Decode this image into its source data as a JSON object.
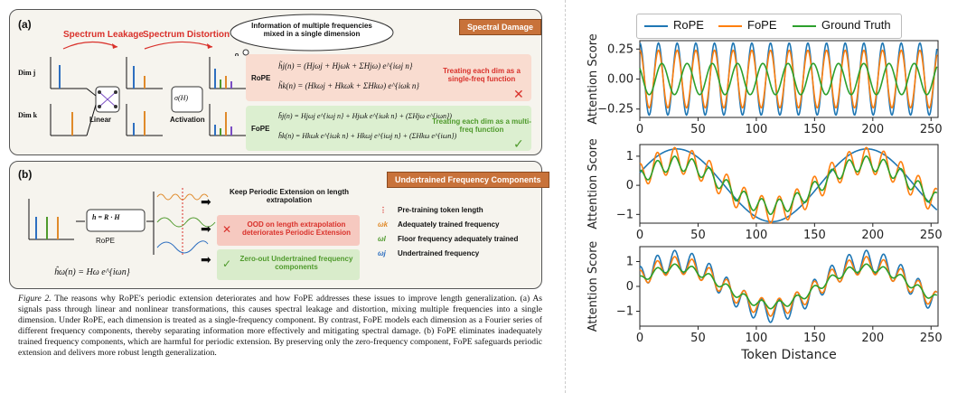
{
  "figure": {
    "panel_a": {
      "label": "(a)",
      "spectrum_leakage": "Spectrum Leakage",
      "spectrum_distortion": "Spectrum Distortion",
      "cloud_text": "Information of multiple frequencies mixed in a single dimension",
      "tag": "Spectral Damage",
      "dim_j": "Dim j",
      "dim_k": "Dim k",
      "axis_h": "H",
      "axis_w": "ω",
      "omega_j": "ωj",
      "omega_k": "ωk",
      "linear_label": "Linear",
      "activation_label": "Activation",
      "sigma": "σ(H)",
      "rope_label": "RoPE",
      "fope_label": "FoPE",
      "rope_eq1": "h̃j(n) = (Hjωj + Hjωk + ΣHjω) e^{iωj n}",
      "rope_eq2": "h̃k(n) = (Hkωj + Hkωk + ΣHkω) e^{iωk n}",
      "fope_eq1": "h̃j(n) = Hjωj e^{iωj n} + Hjωk e^{iωk n} + (ΣHjω e^{iωn})",
      "fope_eq2": "h̃k(n) = Hkωk e^{iωk n} + Hkωj e^{iωj n} + (ΣHkω e^{iωn})",
      "rope_note": "Treating each dim as a single-freq function",
      "fope_note": "Treating each dim as a multi-freq function"
    },
    "panel_b": {
      "label": "(b)",
      "tag": "Undertrained Frequency Components",
      "h_eq": "h = R · H",
      "rope_label": "RoPE",
      "keep_text": "Keep Periodic Extension on length extrapolation",
      "ood_text": "OOD on length extrapolation deteriorates Periodic Extension",
      "zero_text": "Zero-out Undertrained frequency components",
      "bottom_eq": "ĥω(n) = Hω e^{iωn}",
      "axis_n": "n",
      "axis_h": "h",
      "legend": [
        "Pre-training token length",
        "Adequately trained frequency",
        "Floor frequency adequately trained",
        "Undertrained frequency"
      ],
      "legend_symbols": [
        "⋮",
        "ωk",
        "ωl",
        "ωj"
      ]
    },
    "caption_title": "Figure 2.",
    "caption_body": "The reasons why RoPE's periodic extension deteriorates and how FoPE addresses these issues to improve length generalization. (a) As signals pass through linear and nonlinear transformations, this causes spectral leakage and distortion, mixing multiple frequencies into a single dimension. Under RoPE, each dimension is treated as a single-frequency component. By contrast, FoPE models each dimension as a Fourier series of different frequency components, thereby separating information more effectively and mitigating spectral damage. (b) FoPE eliminates inadequately trained frequency components, which are harmful for periodic extension. By preserving only the zero-frequency component, FoPE safeguards periodic extension and delivers more robust length generalization."
  },
  "chart_data": [
    {
      "type": "line",
      "series_names": [
        "RoPE",
        "FoPE",
        "Ground Truth"
      ],
      "colors": [
        "#1f77b4",
        "#ff7f0e",
        "#2ca02c"
      ],
      "ylabel": "Attention Score",
      "xlabel": "",
      "xlim": [
        0,
        256
      ],
      "ylim": [
        -0.32,
        0.32
      ],
      "xticks": [
        0,
        50,
        100,
        150,
        200,
        250
      ],
      "yticks": [
        -0.25,
        0.0,
        0.25
      ],
      "ytick_labels": [
        "−0.25",
        "0.00",
        "0.25"
      ],
      "series": [
        {
          "name": "RoPE",
          "amp": 0.3,
          "freq": 0.392,
          "phase": 0.0
        },
        {
          "name": "FoPE",
          "amp": 0.24,
          "freq": 0.392,
          "phase": 0.0
        },
        {
          "name": "Ground Truth",
          "amp": 0.13,
          "freq": 0.29,
          "phase": 0.8
        }
      ]
    },
    {
      "type": "line",
      "series_names": [
        "RoPE",
        "FoPE",
        "Ground Truth"
      ],
      "ylabel": "Attention Score",
      "xlabel": "",
      "xlim": [
        0,
        256
      ],
      "ylim": [
        -1.3,
        1.4
      ],
      "xticks": [
        0,
        50,
        100,
        150,
        200,
        250
      ],
      "yticks": [
        -1,
        0,
        1
      ],
      "ytick_labels": [
        "−1",
        "0",
        "1"
      ],
      "series": [
        {
          "name": "RoPE",
          "base_amp": 1.25,
          "base_freq": 0.0385
        },
        {
          "name": "FoPE",
          "base_amp": 0.85,
          "base_freq": 0.0385,
          "ripple": 0.45,
          "ripple_freq": 0.42
        },
        {
          "name": "Ground Truth",
          "base_amp": 0.75,
          "base_freq": 0.0385,
          "ripple": 0.25,
          "ripple_freq": 0.42
        }
      ]
    },
    {
      "type": "line",
      "series_names": [
        "RoPE",
        "FoPE",
        "Ground Truth"
      ],
      "ylabel": "Attention Score",
      "xlabel": "Token Distance",
      "xlim": [
        0,
        256
      ],
      "ylim": [
        -1.6,
        1.6
      ],
      "xticks": [
        0,
        50,
        100,
        150,
        200,
        250
      ],
      "yticks": [
        -1,
        0,
        1
      ],
      "ytick_labels": [
        "−1",
        "0",
        "1"
      ],
      "series": [
        {
          "name": "RoPE",
          "base_amp": 1.0,
          "base_freq": 0.0385,
          "ripple": 0.45,
          "ripple_freq": 0.42
        },
        {
          "name": "FoPE",
          "base_amp": 0.85,
          "base_freq": 0.0385,
          "ripple": 0.35,
          "ripple_freq": 0.42
        },
        {
          "name": "Ground Truth",
          "base_amp": 0.75,
          "base_freq": 0.0385,
          "ripple": 0.15,
          "ripple_freq": 0.42
        }
      ]
    }
  ]
}
